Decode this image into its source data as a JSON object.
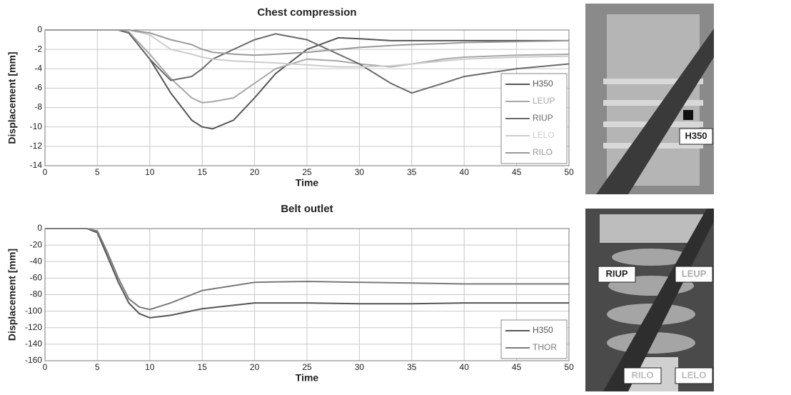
{
  "chart_data": [
    {
      "type": "line",
      "title": "Chest compression",
      "x_label": "Time",
      "y_label": "Displacement [mm]",
      "x": [
        0,
        5,
        7,
        8,
        10,
        12,
        14,
        15,
        16,
        18,
        20,
        22,
        25,
        28,
        30,
        33,
        35,
        38,
        40,
        45,
        50
      ],
      "series": [
        {
          "name": "H350",
          "color": "#555555",
          "values": [
            0,
            0,
            0,
            -0.3,
            -3,
            -6.5,
            -9.3,
            -10,
            -10.2,
            -9.3,
            -7,
            -4.5,
            -2,
            -0.8,
            -0.9,
            -1.1,
            -1.1,
            -1.1,
            -1.1,
            -1.1,
            -1.1
          ]
        },
        {
          "name": "LEUP",
          "color": "#a8a8a8",
          "values": [
            0,
            0,
            0,
            -0.2,
            -2.5,
            -5,
            -7,
            -7.5,
            -7.4,
            -7,
            -5.5,
            -4,
            -3,
            -3.2,
            -3.5,
            -3.8,
            -3.5,
            -3,
            -2.8,
            -2.6,
            -2.5
          ]
        },
        {
          "name": "RIUP",
          "color": "#6a6a6a",
          "values": [
            0,
            0,
            0,
            -0.3,
            -3,
            -5.2,
            -4.8,
            -4,
            -3,
            -2,
            -1,
            -0.4,
            -1,
            -2.5,
            -3.5,
            -5.5,
            -6.5,
            -5.5,
            -4.8,
            -4,
            -3.5
          ]
        },
        {
          "name": "LELO",
          "color": "#cccccc",
          "values": [
            0,
            0,
            0,
            0,
            -0.5,
            -2,
            -2.5,
            -2.8,
            -3,
            -3.2,
            -3.3,
            -3.4,
            -3.6,
            -3.8,
            -3.8,
            -3.7,
            -3.5,
            -3.2,
            -3,
            -2.8,
            -2.7
          ]
        },
        {
          "name": "RILO",
          "color": "#999999",
          "values": [
            0,
            0,
            0,
            0,
            -0.3,
            -1,
            -1.5,
            -2,
            -2.3,
            -2.5,
            -2.6,
            -2.5,
            -2.3,
            -2,
            -1.8,
            -1.6,
            -1.5,
            -1.4,
            -1.3,
            -1.2,
            -1.1
          ]
        }
      ],
      "xlim": [
        0,
        50
      ],
      "xticks": [
        0,
        5,
        10,
        15,
        20,
        25,
        30,
        35,
        40,
        45,
        50
      ],
      "ylim": [
        -14,
        0
      ],
      "yticks": [
        0,
        -2,
        -4,
        -6,
        -8,
        -10,
        -12,
        -14
      ],
      "grid": true,
      "legend": "lower right"
    },
    {
      "type": "line",
      "title": "Belt outlet",
      "x_label": "Time",
      "y_label": "Displacement [mm]",
      "x": [
        0,
        4,
        5,
        6,
        7,
        8,
        9,
        10,
        12,
        15,
        20,
        25,
        30,
        35,
        40,
        45,
        50
      ],
      "series": [
        {
          "name": "H350",
          "color": "#555555",
          "values": [
            0,
            0,
            -5,
            -35,
            -65,
            -90,
            -103,
            -108,
            -105,
            -97,
            -90,
            -90,
            -91,
            -91,
            -90,
            -90,
            -90
          ]
        },
        {
          "name": "THOR",
          "color": "#7a7a7a",
          "values": [
            0,
            0,
            -3,
            -30,
            -60,
            -85,
            -95,
            -98,
            -90,
            -75,
            -65,
            -64,
            -65,
            -66,
            -67,
            -67,
            -67
          ]
        }
      ],
      "xlim": [
        0,
        50
      ],
      "xticks": [
        0,
        5,
        10,
        15,
        20,
        25,
        30,
        35,
        40,
        45,
        50
      ],
      "ylim": [
        -160,
        0
      ],
      "yticks": [
        0,
        -20,
        -40,
        -60,
        -80,
        -100,
        -120,
        -140,
        -160
      ],
      "grid": true,
      "legend": "lower right"
    }
  ],
  "photos": [
    {
      "labels": [
        "H350"
      ]
    },
    {
      "labels": [
        "RIUP",
        "LEUP",
        "RILO",
        "LELO"
      ]
    }
  ]
}
